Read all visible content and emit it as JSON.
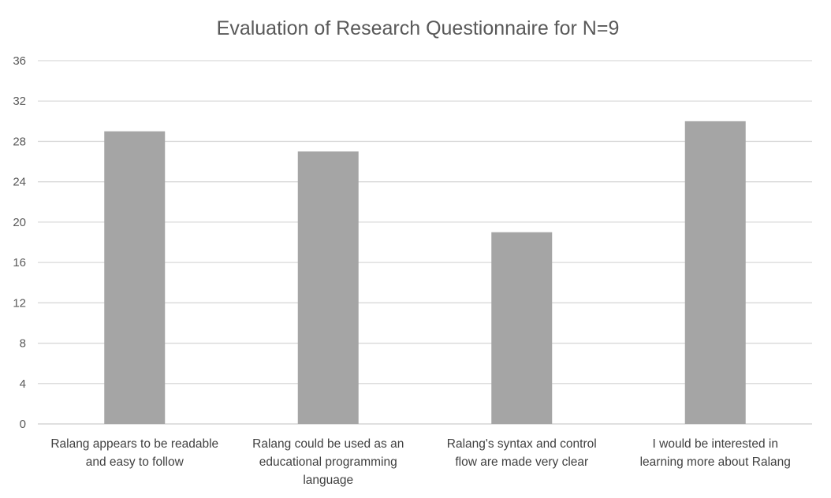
{
  "chart_data": {
    "type": "bar",
    "title": "Evaluation of Research Questionnaire for N=9",
    "categories": [
      [
        "Ralang appears to be readable",
        "and easy to follow"
      ],
      [
        "Ralang could be used as an",
        "educational programming",
        "language"
      ],
      [
        "Ralang's syntax and control",
        "flow are made very clear"
      ],
      [
        "I would be interested in",
        "learning more about Ralang"
      ]
    ],
    "values": [
      29,
      27,
      19,
      30
    ],
    "ylim": [
      0,
      36
    ],
    "yticks": [
      0,
      4,
      8,
      12,
      16,
      20,
      24,
      28,
      32,
      36
    ],
    "grid": true,
    "legend": "none",
    "colors": {
      "bar": "#a5a5a5",
      "grid": "#d9d9d9",
      "axis": "#d9d9d9"
    }
  }
}
